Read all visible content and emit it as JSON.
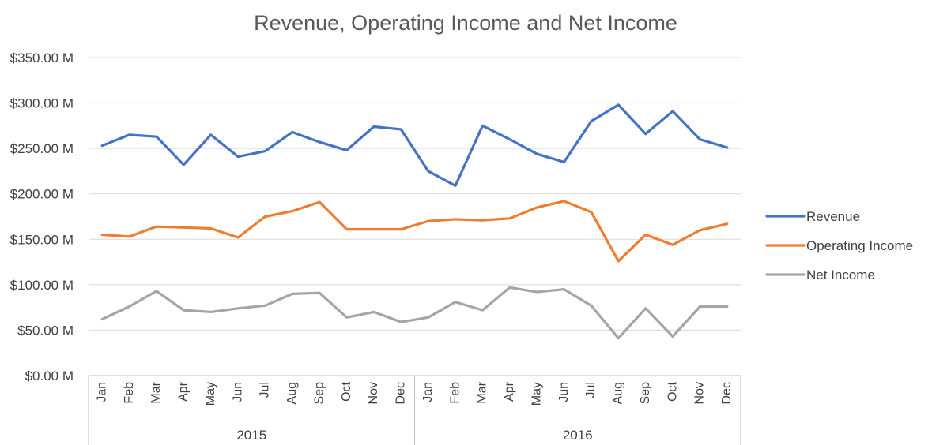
{
  "chart_data": {
    "type": "line",
    "title": "Revenue, Operating Income and Net Income",
    "xlabel": "",
    "ylabel": "",
    "ylim": [
      0,
      350
    ],
    "y_ticks": [
      0,
      50,
      100,
      150,
      200,
      250,
      300,
      350
    ],
    "y_tick_labels": [
      "$0.00 M",
      "$50.00 M",
      "$100.00 M",
      "$150.00 M",
      "$200.00 M",
      "$250.00 M",
      "$300.00 M",
      "$350.00 M"
    ],
    "categories": [
      "Jan",
      "Feb",
      "Mar",
      "Apr",
      "May",
      "Jun",
      "Jul",
      "Aug",
      "Sep",
      "Oct",
      "Nov",
      "Dec",
      "Jan",
      "Feb",
      "Mar",
      "Apr",
      "May",
      "Jun",
      "Jul",
      "Aug",
      "Sep",
      "Oct",
      "Nov",
      "Dec"
    ],
    "groups": [
      {
        "label": "2015",
        "count": 12
      },
      {
        "label": "2016",
        "count": 12
      }
    ],
    "grid": true,
    "legend_position": "right",
    "series": [
      {
        "name": "Revenue",
        "color": "#4472c4",
        "values": [
          253,
          265,
          263,
          232,
          265,
          241,
          247,
          268,
          257,
          248,
          274,
          271,
          225,
          209,
          275,
          260,
          244,
          235,
          280,
          298,
          266,
          291,
          260,
          251
        ]
      },
      {
        "name": "Operating Income",
        "color": "#ed7d31",
        "values": [
          155,
          153,
          164,
          163,
          162,
          152,
          175,
          181,
          191,
          161,
          161,
          161,
          170,
          172,
          171,
          173,
          185,
          192,
          180,
          126,
          155,
          144,
          160,
          167
        ]
      },
      {
        "name": "Net Income",
        "color": "#a5a5a5",
        "values": [
          62,
          76,
          93,
          72,
          70,
          74,
          77,
          90,
          91,
          64,
          70,
          59,
          64,
          81,
          72,
          97,
          92,
          95,
          77,
          41,
          74,
          43,
          76,
          76
        ]
      }
    ]
  }
}
